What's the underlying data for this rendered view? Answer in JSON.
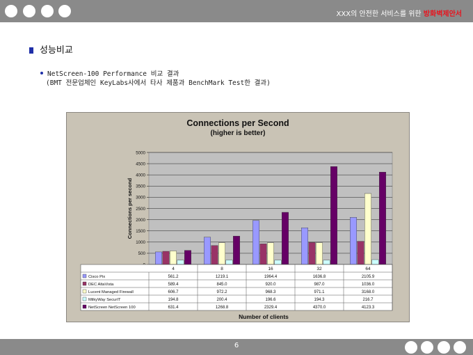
{
  "header": {
    "title_prefix": "XXX의 안전한 서비스를 위한 ",
    "title_accent": "방화벽제안서"
  },
  "section": {
    "title": "성능비교"
  },
  "bullet": {
    "line1": "NetScreen-100 Performance 비교 결과",
    "line2": "(BMT 전문업체인 KeyLabs사에서 타사 제품과 BenchMark Test한 결과)"
  },
  "footer": {
    "page_number": "6"
  },
  "colors": {
    "bar_bg": "#8a8a8a",
    "accent": "#e8141e",
    "plot_bg": "#c0c0c0"
  },
  "chart_data": {
    "type": "bar",
    "title": "Connections per Second",
    "subtitle": "(higher is better)",
    "ylabel": "Connections per second",
    "xlabel": "Number of clients",
    "ylim": [
      0,
      5000
    ],
    "yticks": [
      "0",
      "500",
      "1000",
      "1500",
      "2000",
      "2500",
      "3000",
      "3500",
      "4000",
      "4500",
      "5000"
    ],
    "categories": [
      "4",
      "8",
      "16",
      "32",
      "64"
    ],
    "legend": "data-table",
    "series": [
      {
        "name": "Cisco Pix",
        "color": "#9999ff",
        "values": [
          561.2,
          1219.1,
          1964.4,
          1636.8,
          2105.9
        ],
        "labels": [
          "561.2",
          "1219.1",
          "1964.4",
          "1636.8",
          "2105.9"
        ]
      },
      {
        "name": "DEC AltaVista",
        "color": "#993366",
        "values": [
          589.4,
          845.0,
          920.0,
          987.0,
          1036.0
        ],
        "labels": [
          "589.4",
          "845.0",
          "920.0",
          "987.0",
          "1036.0"
        ]
      },
      {
        "name": "Lucent Managed Firewall",
        "color": "#ffffcc",
        "values": [
          606.7,
          972.2,
          968.3,
          971.1,
          3168.0
        ],
        "labels": [
          "606.7",
          "972.2",
          "968.3",
          "971.1",
          "3168.0"
        ]
      },
      {
        "name": "MilkyWay SecurIT",
        "color": "#ccffff",
        "values": [
          194.8,
          200.4,
          196.6,
          194.3,
          216.7
        ],
        "labels": [
          "194.8",
          "200.4",
          "196.6",
          "194.3",
          "216.7"
        ]
      },
      {
        "name": "NetScreen NetScreen 100",
        "color": "#660066",
        "values": [
          631.4,
          1268.8,
          2329.4,
          4370.0,
          4123.3
        ],
        "labels": [
          "631.4",
          "1268.8",
          "2329.4",
          "4370.0",
          "4123.3"
        ]
      }
    ]
  }
}
